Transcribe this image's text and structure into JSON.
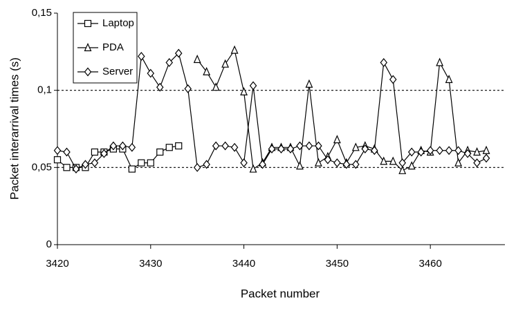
{
  "chart_data": {
    "type": "line",
    "xlabel": "Packet number",
    "ylabel": "Packet interarrival times (s)",
    "x": [
      3420,
      3421,
      3422,
      3423,
      3424,
      3425,
      3426,
      3427,
      3428,
      3429,
      3430,
      3431,
      3432,
      3433,
      3434,
      3435,
      3436,
      3437,
      3438,
      3439,
      3440,
      3441,
      3442,
      3443,
      3444,
      3445,
      3446,
      3447,
      3448,
      3449,
      3450,
      3451,
      3452,
      3453,
      3454,
      3455,
      3456,
      3457,
      3458,
      3459,
      3460,
      3461,
      3462,
      3463,
      3464,
      3465,
      3466
    ],
    "series": [
      {
        "name": "Laptop",
        "color": "#000000",
        "marker": "square",
        "values": [
          0.055,
          0.05,
          0.05,
          0.05,
          0.06,
          0.06,
          0.062,
          0.062,
          0.049,
          0.053,
          0.053,
          0.06,
          0.063,
          0.064,
          null,
          null,
          null,
          null,
          null,
          null,
          null,
          null,
          null,
          null,
          null,
          null,
          null,
          null,
          null,
          null,
          null,
          null,
          null,
          null,
          null,
          null,
          null,
          null,
          null,
          null,
          null,
          null,
          null,
          null,
          null,
          null,
          null
        ]
      },
      {
        "name": "PDA",
        "color": "#000000",
        "marker": "triangle",
        "values": [
          null,
          null,
          null,
          null,
          null,
          null,
          null,
          null,
          null,
          null,
          null,
          null,
          null,
          null,
          null,
          0.12,
          0.112,
          0.102,
          0.117,
          0.126,
          0.099,
          0.049,
          0.053,
          0.063,
          0.063,
          0.063,
          0.051,
          0.104,
          0.053,
          0.057,
          0.068,
          0.053,
          0.063,
          0.064,
          0.062,
          0.054,
          0.054,
          0.048,
          0.051,
          0.061,
          0.06,
          0.118,
          0.107,
          0.053,
          0.061,
          0.06,
          0.061
        ]
      },
      {
        "name": "Server",
        "color": "#000000",
        "marker": "diamond",
        "values": [
          0.061,
          0.06,
          0.049,
          0.052,
          0.053,
          0.059,
          0.064,
          0.064,
          0.063,
          0.122,
          0.111,
          0.102,
          0.118,
          0.124,
          0.101,
          0.05,
          0.052,
          0.064,
          0.064,
          0.063,
          0.053,
          0.103,
          0.052,
          0.062,
          0.062,
          0.062,
          0.064,
          0.064,
          0.064,
          0.055,
          0.053,
          0.052,
          0.052,
          0.062,
          0.061,
          0.118,
          0.107,
          0.053,
          0.06,
          0.06,
          0.061,
          0.061,
          0.061,
          0.061,
          0.059,
          0.053,
          0.056
        ]
      }
    ],
    "xlim": [
      3420,
      3468
    ],
    "xticks": [
      3420,
      3430,
      3440,
      3450,
      3460
    ],
    "ylim": [
      0,
      0.15
    ],
    "yticks": [
      0,
      {
        "value": 0.05,
        "label": "0,05"
      },
      {
        "value": 0.1,
        "label": "0,1"
      },
      {
        "value": 0.15,
        "label": "0,15"
      }
    ],
    "grid": true,
    "legend": "upper left"
  }
}
